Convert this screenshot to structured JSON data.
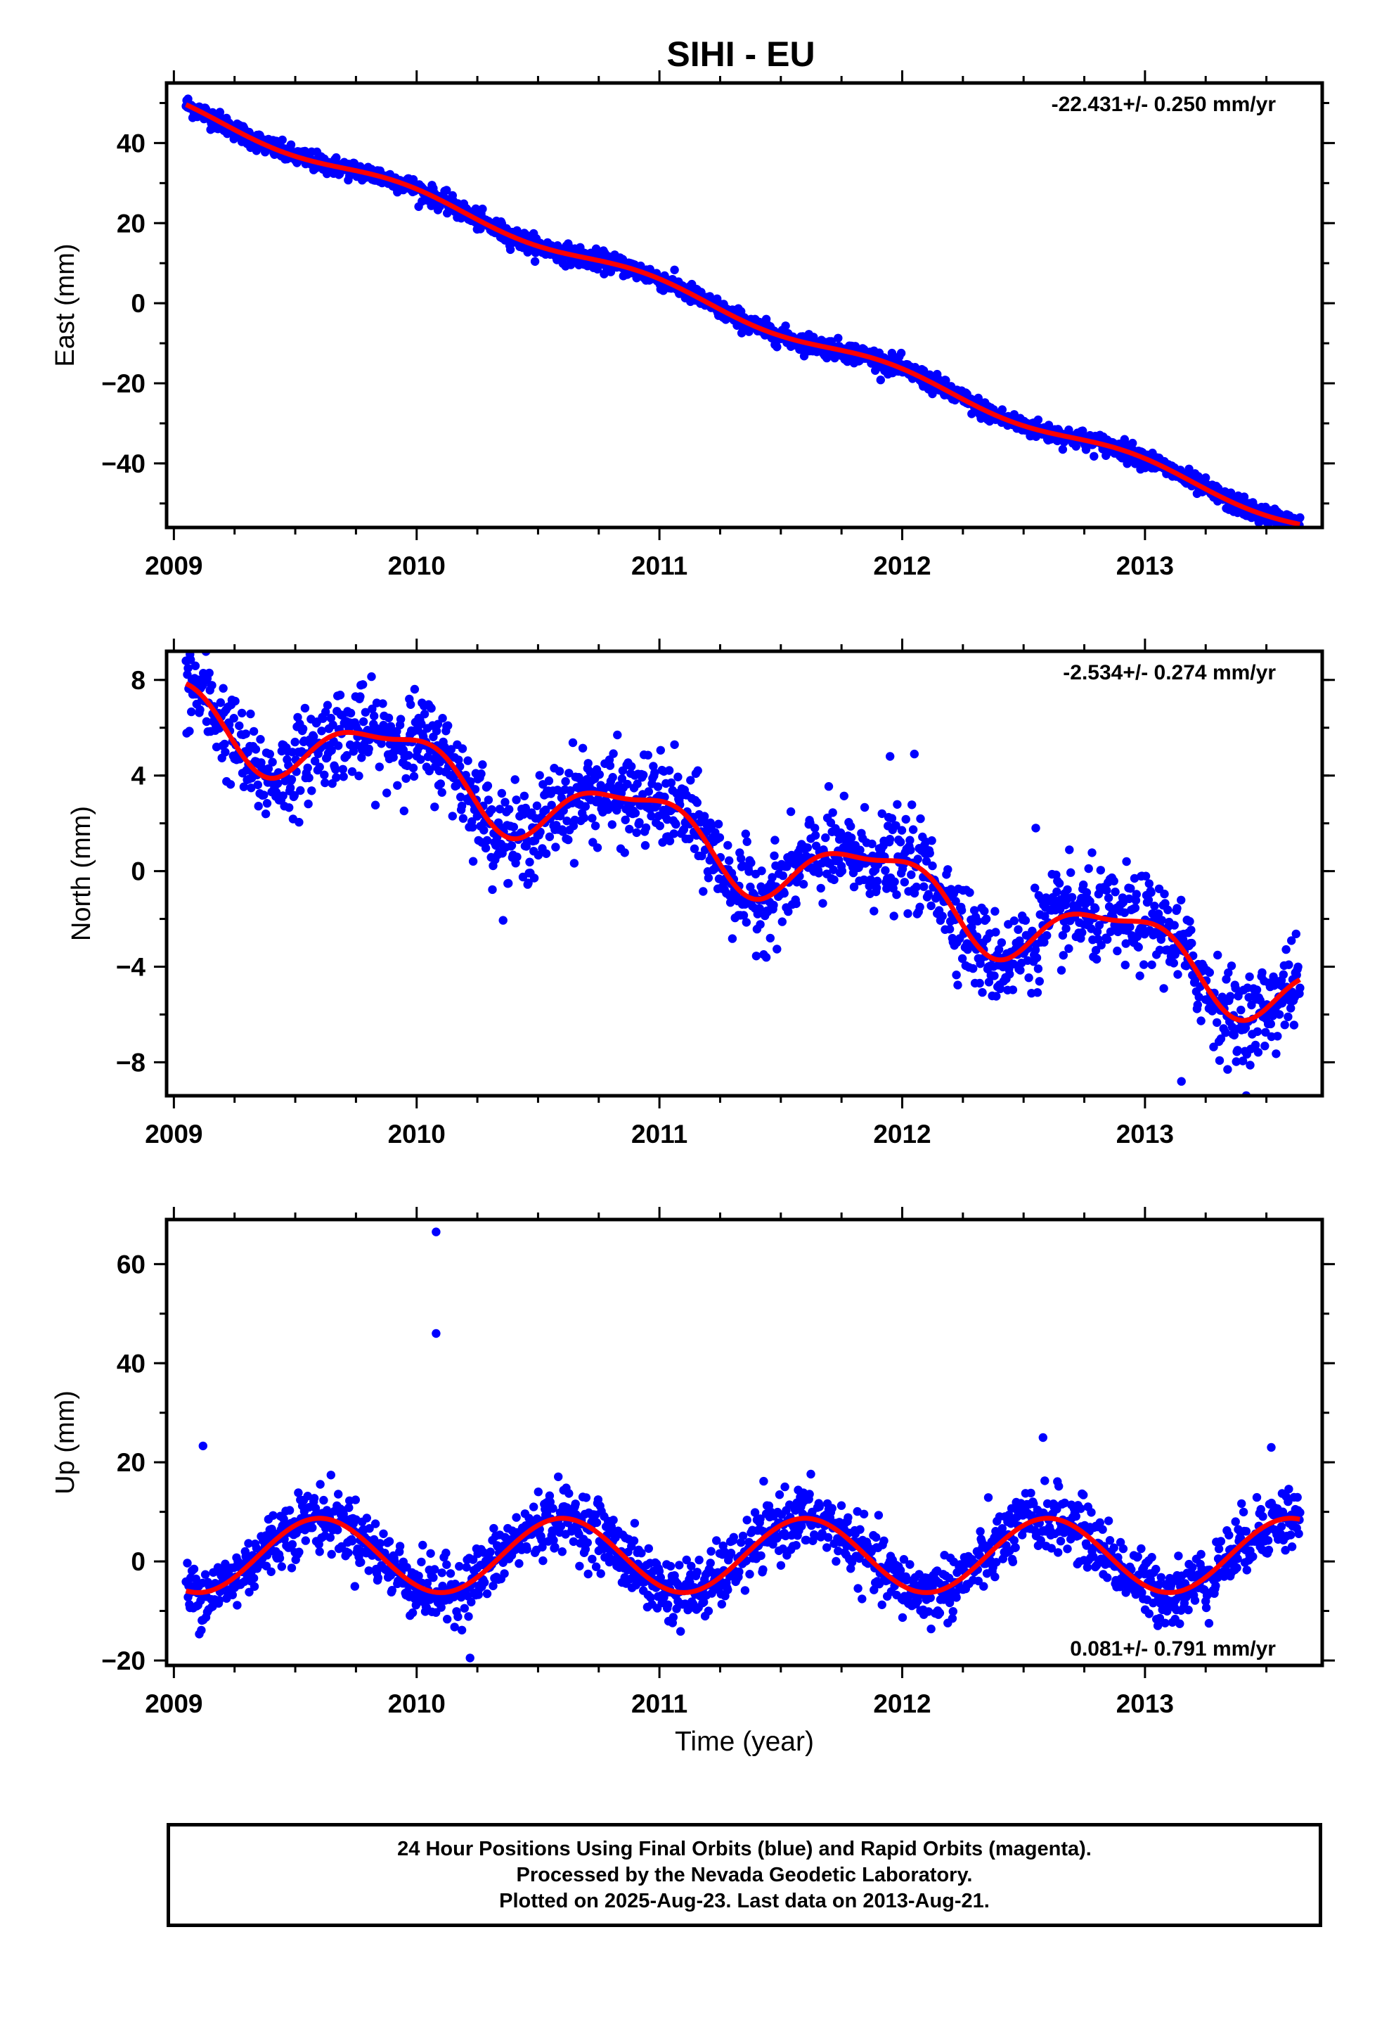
{
  "title": "SIHI - EU",
  "colors": {
    "points": "#0000ff",
    "fit": "#ff0000",
    "frame": "#000000"
  },
  "xaxis": {
    "label": "Time (year)",
    "range": [
      2008.97,
      2013.73
    ],
    "ticks": [
      "2009",
      "2010",
      "2011",
      "2012",
      "2013"
    ]
  },
  "panels": [
    {
      "name": "East",
      "ylabel": "East (mm)",
      "rate_text": "-22.431+/- 0.250 mm/yr",
      "rate_position": "top-right",
      "yrange": [
        -56,
        55
      ],
      "yticks": [
        "40",
        "20",
        "0",
        "−20",
        "−40"
      ],
      "ytick_values": [
        40,
        20,
        0,
        -20,
        -40
      ],
      "series": {
        "type": "linear",
        "start_year": 2009.05,
        "start_value": 48.3,
        "rate": -22.431,
        "annual_amp": 1.6,
        "annual_phase": 0.3,
        "noise": 1.2
      },
      "outliers": []
    },
    {
      "name": "North",
      "ylabel": "North (mm)",
      "rate_text": "-2.534+/- 0.274 mm/yr",
      "rate_position": "top-right",
      "yrange": [
        -9.4,
        9.2
      ],
      "yticks": [
        "8",
        "4",
        "0",
        "−4",
        "−8"
      ],
      "ytick_values": [
        8,
        4,
        0,
        -4,
        -8
      ],
      "series": {
        "type": "linear",
        "start_year": 2009.05,
        "start_value": 6.7,
        "rate": -2.534,
        "annual_amp": 1.45,
        "annual_phase": 0.35,
        "noise": 0.95
      },
      "outliers": [
        [
          2009.05,
          8.8
        ],
        [
          2011.95,
          4.8
        ],
        [
          2012.05,
          4.9
        ],
        [
          2013.15,
          -8.8
        ],
        [
          2012.55,
          1.8
        ]
      ]
    },
    {
      "name": "Up",
      "ylabel": "Up (mm)",
      "rate_text": "0.081+/- 0.791 mm/yr",
      "rate_position": "bottom-right",
      "yrange": [
        -21,
        69
      ],
      "yticks": [
        "60",
        "40",
        "20",
        "0",
        "−20"
      ],
      "ytick_values": [
        60,
        40,
        20,
        0,
        -20
      ],
      "series": {
        "type": "seasonal",
        "start_year": 2009.05,
        "start_value": 0.0,
        "rate": 0.081,
        "annual_amp": 7.5,
        "annual_phase": 0.35,
        "noise": 3.2
      },
      "outliers": [
        [
          2010.08,
          66.5
        ],
        [
          2010.08,
          46.0
        ],
        [
          2009.12,
          23.3
        ],
        [
          2012.58,
          25.0
        ],
        [
          2013.52,
          23.0
        ],
        [
          2010.22,
          -19.5
        ]
      ]
    }
  ],
  "footer": {
    "line1": "24 Hour Positions Using Final Orbits (blue) and Rapid Orbits (magenta).",
    "line2": "Processed by the Nevada Geodetic Laboratory.",
    "line3": "Plotted on 2025-Aug-23. Last data on 2013-Aug-21."
  }
}
